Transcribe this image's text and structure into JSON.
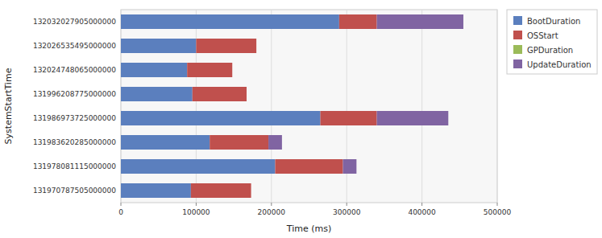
{
  "chart_data": {
    "type": "bar",
    "orientation": "horizontal",
    "stacked": true,
    "categories": [
      "132032027905000000",
      "132026535495000000",
      "132024748065000000",
      "131996208775000000",
      "131986973725000000",
      "131983620285000000",
      "131978081115000000",
      "131970787505000000"
    ],
    "series": [
      {
        "name": "BootDuration",
        "color": "#5b7fbe",
        "values": [
          290000,
          100000,
          88000,
          95000,
          265000,
          118000,
          205000,
          93000
        ]
      },
      {
        "name": "OSStart",
        "color": "#c0504d",
        "values": [
          50000,
          80000,
          60000,
          72000,
          75000,
          78000,
          90000,
          80000
        ]
      },
      {
        "name": "GPDuration",
        "color": "#9bbb59",
        "values": [
          0,
          0,
          0,
          0,
          0,
          0,
          0,
          0
        ]
      },
      {
        "name": "UpdateDuration",
        "color": "#8064a2",
        "values": [
          115000,
          0,
          0,
          0,
          95000,
          18000,
          18000,
          0
        ]
      }
    ],
    "xlabel": "Time (ms)",
    "ylabel": "SystemStartTime",
    "xlim": [
      0,
      500000
    ],
    "xticks": [
      0,
      100000,
      200000,
      300000,
      400000,
      500000
    ],
    "grid": true,
    "legend": "right"
  }
}
